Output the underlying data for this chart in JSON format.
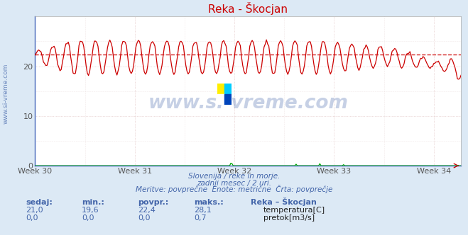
{
  "title": "Reka - Škocjan",
  "bg_color": "#dce9f5",
  "plot_bg_color": "#ffffff",
  "x_tick_labels": [
    "Week 30",
    "Week 31",
    "Week 32",
    "Week 33",
    "Week 34"
  ],
  "ylim": [
    0,
    30
  ],
  "yticks": [
    0,
    10,
    20
  ],
  "avg_line_value": 22.4,
  "avg_line_color": "#cc0000",
  "temp_line_color": "#cc0000",
  "flow_line_color": "#00aa00",
  "watermark_text": "www.si-vreme.com",
  "watermark_color": "#4466aa",
  "subtitle1": "Slovenija / reke in morje.",
  "subtitle2": "zadnji mesec / 2 uri.",
  "subtitle3": "Meritve: povprečne  Enote: metrične  Črta: povprečje",
  "subtitle_color": "#4466aa",
  "table_header": [
    "sedaj:",
    "min.:",
    "povpr.:",
    "maks.:",
    "Reka – Škocjan"
  ],
  "table_row1": [
    "21,0",
    "19,6",
    "22,4",
    "28,1",
    "temperatura[C]"
  ],
  "table_row2": [
    "0,0",
    "0,0",
    "0,0",
    "0,7",
    "pretok[m3/s]"
  ],
  "table_color": "#4466aa",
  "legend_color1": "#cc0000",
  "legend_color2": "#00aa00",
  "n_points": 360,
  "logo_colors": [
    "#ffee00",
    "#00ccff",
    "#ffffff",
    "#0044bb"
  ]
}
